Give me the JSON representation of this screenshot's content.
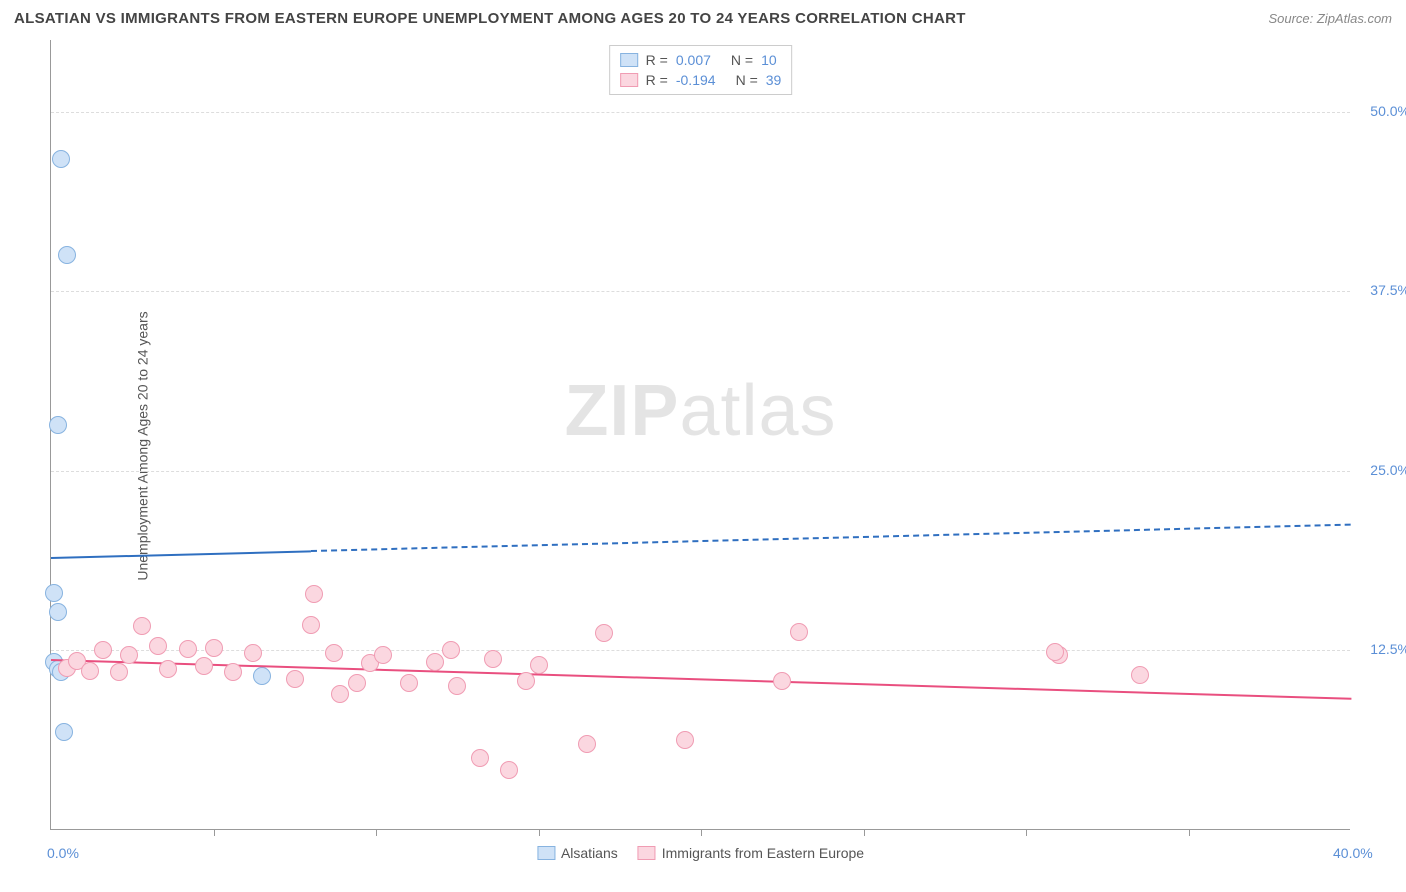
{
  "title": "ALSATIAN VS IMMIGRANTS FROM EASTERN EUROPE UNEMPLOYMENT AMONG AGES 20 TO 24 YEARS CORRELATION CHART",
  "source": "Source: ZipAtlas.com",
  "watermark_bold": "ZIP",
  "watermark_light": "atlas",
  "y_axis_label": "Unemployment Among Ages 20 to 24 years",
  "chart": {
    "type": "scatter",
    "xlim": [
      0,
      40
    ],
    "ylim": [
      0,
      55
    ],
    "background_color": "#ffffff",
    "grid_color": "#dddddd",
    "axis_color": "#999999",
    "tick_label_color": "#5b8fd6",
    "x_ticks": [
      {
        "pos": 0.0,
        "label": "0.0%"
      },
      {
        "pos": 40.0,
        "label": "40.0%"
      }
    ],
    "x_minor_ticks": [
      5,
      10,
      15,
      20,
      25,
      30,
      35
    ],
    "y_ticks": [
      {
        "pos": 12.5,
        "label": "12.5%"
      },
      {
        "pos": 25.0,
        "label": "25.0%"
      },
      {
        "pos": 37.5,
        "label": "37.5%"
      },
      {
        "pos": 50.0,
        "label": "50.0%"
      }
    ],
    "series": [
      {
        "name": "Alsatians",
        "color_fill": "#cfe2f7",
        "color_stroke": "#87b3e0",
        "line_color": "#2f6fc0",
        "r": "0.007",
        "n": "10",
        "points": [
          {
            "x": 0.3,
            "y": 46.7
          },
          {
            "x": 0.5,
            "y": 40.0
          },
          {
            "x": 0.2,
            "y": 28.2
          },
          {
            "x": 0.1,
            "y": 16.5
          },
          {
            "x": 0.2,
            "y": 15.2
          },
          {
            "x": 0.1,
            "y": 11.7
          },
          {
            "x": 0.2,
            "y": 11.2
          },
          {
            "x": 0.3,
            "y": 11.0
          },
          {
            "x": 6.5,
            "y": 10.7
          },
          {
            "x": 0.4,
            "y": 6.8
          }
        ],
        "trend": {
          "x1": 0,
          "y1": 19.0,
          "x2": 40,
          "y2": 21.3,
          "solid_until_x": 8
        }
      },
      {
        "name": "Immigrants from Eastern Europe",
        "color_fill": "#fbd7e0",
        "color_stroke": "#f09cb3",
        "line_color": "#e94f7f",
        "r": "-0.194",
        "n": "39",
        "points": [
          {
            "x": 0.5,
            "y": 11.3
          },
          {
            "x": 0.8,
            "y": 11.8
          },
          {
            "x": 1.2,
            "y": 11.1
          },
          {
            "x": 1.6,
            "y": 12.5
          },
          {
            "x": 2.1,
            "y": 11.0
          },
          {
            "x": 2.4,
            "y": 12.2
          },
          {
            "x": 2.8,
            "y": 14.2
          },
          {
            "x": 3.3,
            "y": 12.8
          },
          {
            "x": 3.6,
            "y": 11.2
          },
          {
            "x": 4.2,
            "y": 12.6
          },
          {
            "x": 4.7,
            "y": 11.4
          },
          {
            "x": 5.0,
            "y": 12.7
          },
          {
            "x": 5.6,
            "y": 11.0
          },
          {
            "x": 6.2,
            "y": 12.3
          },
          {
            "x": 7.5,
            "y": 10.5
          },
          {
            "x": 8.0,
            "y": 14.3
          },
          {
            "x": 8.1,
            "y": 16.4
          },
          {
            "x": 8.7,
            "y": 12.3
          },
          {
            "x": 8.9,
            "y": 9.5
          },
          {
            "x": 9.4,
            "y": 10.2
          },
          {
            "x": 9.8,
            "y": 11.6
          },
          {
            "x": 10.2,
            "y": 12.2
          },
          {
            "x": 11.0,
            "y": 10.2
          },
          {
            "x": 11.8,
            "y": 11.7
          },
          {
            "x": 12.3,
            "y": 12.5
          },
          {
            "x": 12.5,
            "y": 10.0
          },
          {
            "x": 13.2,
            "y": 5.0
          },
          {
            "x": 13.6,
            "y": 11.9
          },
          {
            "x": 14.1,
            "y": 4.2
          },
          {
            "x": 14.6,
            "y": 10.4
          },
          {
            "x": 15.0,
            "y": 11.5
          },
          {
            "x": 16.5,
            "y": 6.0
          },
          {
            "x": 17.0,
            "y": 13.7
          },
          {
            "x": 19.5,
            "y": 6.3
          },
          {
            "x": 22.5,
            "y": 10.4
          },
          {
            "x": 23.0,
            "y": 13.8
          },
          {
            "x": 31.0,
            "y": 12.2
          },
          {
            "x": 33.5,
            "y": 10.8
          },
          {
            "x": 30.9,
            "y": 12.4
          }
        ],
        "trend": {
          "x1": 0,
          "y1": 11.9,
          "x2": 40,
          "y2": 9.2,
          "solid_until_x": 40
        }
      }
    ],
    "legend_bottom": [
      {
        "swatch_fill": "#cfe2f7",
        "swatch_stroke": "#87b3e0",
        "label": "Alsatians"
      },
      {
        "swatch_fill": "#fbd7e0",
        "swatch_stroke": "#f09cb3",
        "label": "Immigrants from Eastern Europe"
      }
    ]
  }
}
